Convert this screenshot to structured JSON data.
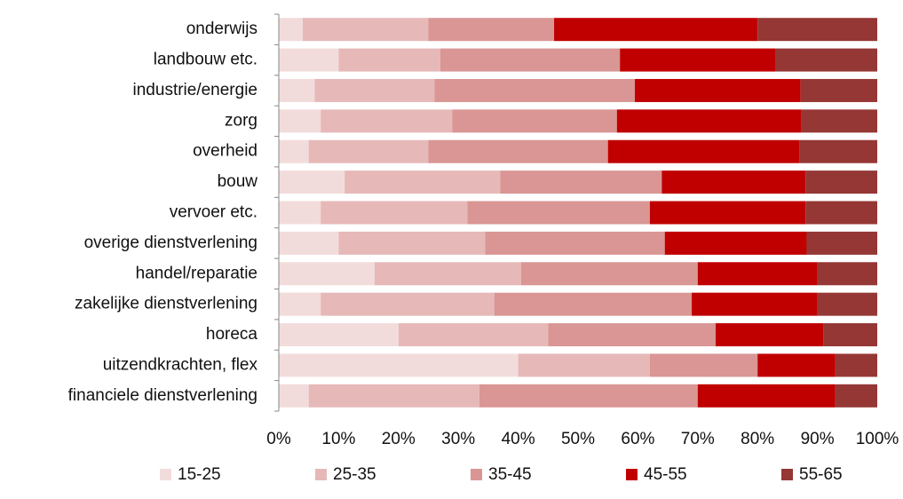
{
  "chart_data": {
    "type": "bar",
    "orientation": "horizontal",
    "stacked": "percent",
    "categories": [
      "onderwijs",
      "landbouw etc.",
      "industrie/energie",
      "zorg",
      "overheid",
      "bouw",
      "vervoer etc.",
      "overige dienstverlening",
      "handel/reparatie",
      "zakelijke dienstverlening",
      "horeca",
      "uitzendkrachten, flex",
      "financiele dienstverlening"
    ],
    "series": [
      {
        "name": "15-25",
        "color": "#f2dcdb",
        "values": [
          4,
          10,
          6,
          7,
          5,
          11,
          7,
          10,
          16,
          7,
          20,
          40,
          5
        ]
      },
      {
        "name": "25-35",
        "color": "#e6b9b8",
        "values": [
          21,
          17,
          20,
          22,
          20,
          26,
          24.5,
          24.5,
          24.5,
          29,
          25,
          22,
          28.5
        ]
      },
      {
        "name": "35-45",
        "color": "#d99694",
        "values": [
          21,
          30,
          33.5,
          27.5,
          30,
          27,
          30.5,
          30,
          29.5,
          33,
          28,
          18,
          36.5
        ]
      },
      {
        "name": "45-55",
        "color": "#c00000",
        "values": [
          34,
          26,
          27.7,
          30.8,
          32,
          24,
          26,
          23.7,
          20,
          21,
          18,
          13,
          23
        ]
      },
      {
        "name": "55-65",
        "color": "#953735",
        "values": [
          20,
          17,
          12.8,
          12.7,
          13,
          12,
          12,
          11.8,
          10,
          10,
          9,
          7,
          7
        ]
      }
    ],
    "xlim": [
      0,
      100
    ],
    "x_ticks": [
      "0%",
      "10%",
      "20%",
      "30%",
      "40%",
      "50%",
      "60%",
      "70%",
      "80%",
      "90%",
      "100%"
    ],
    "grid": false,
    "legend_position": "bottom"
  }
}
